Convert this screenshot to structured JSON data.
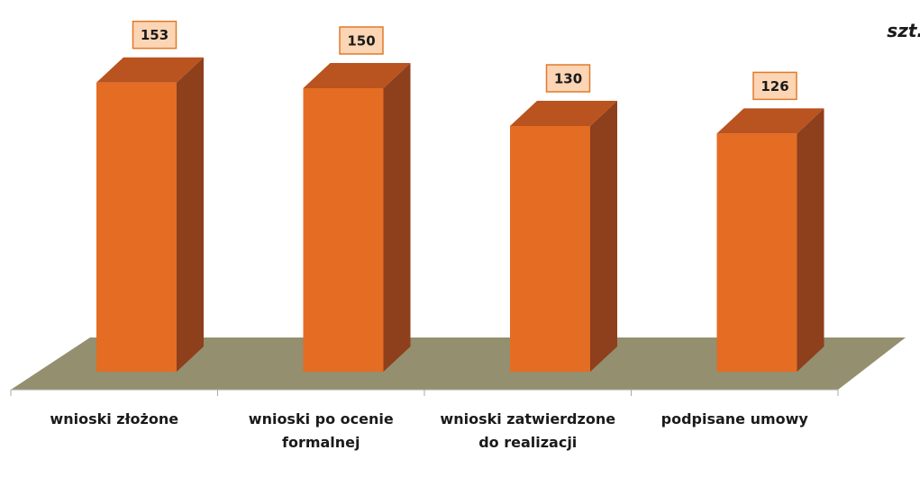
{
  "chart_data": {
    "type": "bar3d",
    "unit": "szt.",
    "categories": [
      "wnioski złożone",
      "wnioski po ocenie formalnej",
      "wnioski zatwierdzone do realizacji",
      "podpisane umowy"
    ],
    "values": [
      153,
      150,
      130,
      126
    ],
    "color": "#e46c23"
  }
}
